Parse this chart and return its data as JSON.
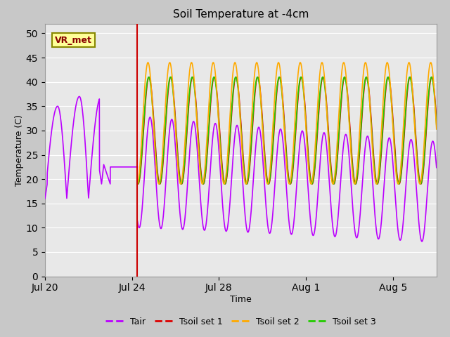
{
  "title": "Soil Temperature at -4cm",
  "xlabel": "Time",
  "ylabel": "Temperature (C)",
  "ylim": [
    0,
    52
  ],
  "yticks": [
    0,
    5,
    10,
    15,
    20,
    25,
    30,
    35,
    40,
    45,
    50
  ],
  "plot_bg_color": "#e8e8e8",
  "fig_bg_color": "#c8c8c8",
  "tair_color": "#bb00ff",
  "tsoil1_color": "#dd0000",
  "tsoil2_color": "#ffaa00",
  "tsoil3_color": "#22cc00",
  "vline_color": "#cc0000",
  "annotation_text": "VR_met",
  "annotation_bg": "#ffff99",
  "annotation_border": "#888800",
  "annotation_text_color": "#880000",
  "legend_labels": [
    "Tair",
    "Tsoil set 1",
    "Tsoil set 2",
    "Tsoil set 3"
  ],
  "vline_day_rel": 4.25,
  "xlim": [
    0,
    18
  ],
  "xtick_positions": [
    0,
    4,
    8,
    12,
    16
  ],
  "xtick_labels": [
    "Jul 20",
    "Jul 24",
    "Jul 28",
    "Aug 1",
    "Aug 5"
  ]
}
